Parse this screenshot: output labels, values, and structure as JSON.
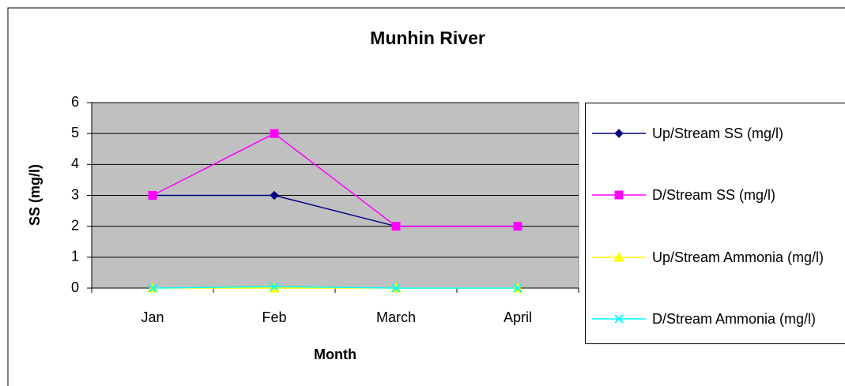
{
  "chart_data": {
    "type": "line",
    "title": "Munhin River",
    "x_label": "Month",
    "y_label": "SS (mg/l)",
    "categories": [
      "Jan",
      "Feb",
      "March",
      "April"
    ],
    "series": [
      {
        "name": "Up/Stream SS (mg/l)",
        "color": "#000080",
        "marker": "diamond",
        "values": [
          3,
          3,
          2,
          2
        ]
      },
      {
        "name": "D/Stream SS (mg/l)",
        "color": "#ff00ff",
        "marker": "square",
        "values": [
          3,
          5,
          2,
          2
        ]
      },
      {
        "name": "Up/Stream Ammonia (mg/l)",
        "color": "#ffff00",
        "marker": "triangle",
        "values": [
          0,
          0,
          0,
          0
        ]
      },
      {
        "name": "D/Stream Ammonia (mg/l)",
        "color": "#00ffff",
        "marker": "x",
        "values": [
          0,
          0.05,
          0,
          0
        ]
      }
    ],
    "ylim": [
      0,
      6
    ],
    "yticks": [
      0,
      1,
      2,
      3,
      4,
      5,
      6
    ],
    "grid": true,
    "legend": "right"
  }
}
